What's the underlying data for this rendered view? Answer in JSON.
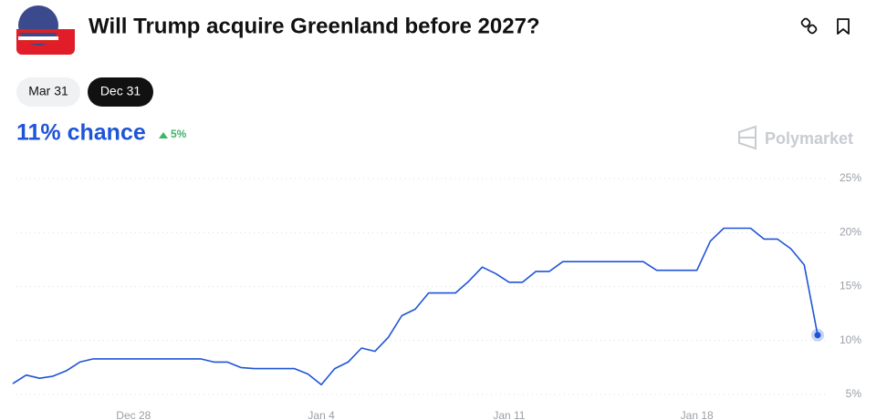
{
  "header": {
    "title": "Will Trump acquire Greenland before 2027?"
  },
  "date_tabs": [
    "Mar 31",
    "Dec 31"
  ],
  "active_tab": 1,
  "headline": {
    "chance": "11% chance",
    "change": "5%"
  },
  "watermark": "Polymarket",
  "chart_data": {
    "type": "line",
    "categories": [
      null,
      null,
      null,
      null,
      null,
      null,
      null,
      null,
      null,
      "Dec 28",
      null,
      null,
      null,
      null,
      null,
      null,
      null,
      null,
      null,
      null,
      null,
      null,
      null,
      "Jan 4",
      null,
      null,
      null,
      null,
      null,
      null,
      null,
      null,
      null,
      null,
      null,
      null,
      null,
      "Jan 11",
      null,
      null,
      null,
      null,
      null,
      null,
      null,
      null,
      null,
      null,
      null,
      null,
      null,
      "Jan 18",
      null,
      null,
      null,
      null,
      null,
      null,
      null,
      null,
      null
    ],
    "series": [
      {
        "color": "#1e54d6",
        "values": [
          6.0,
          6.8,
          6.5,
          6.7,
          7.2,
          8.0,
          8.3,
          8.3,
          8.3,
          8.3,
          8.3,
          8.3,
          8.3,
          8.3,
          8.3,
          8.0,
          8.0,
          7.5,
          7.4,
          7.4,
          7.4,
          7.4,
          6.9,
          5.9,
          7.4,
          8.0,
          9.3,
          9.0,
          10.3,
          12.3,
          12.9,
          14.4,
          14.4,
          14.4,
          15.5,
          16.8,
          16.2,
          15.4,
          15.4,
          16.4,
          16.4,
          17.3,
          17.3,
          17.3,
          17.3,
          17.3,
          17.3,
          17.3,
          16.5,
          16.5,
          16.5,
          16.5,
          19.2,
          20.4,
          20.4,
          20.4,
          19.4,
          19.4,
          18.5,
          17.0,
          10.5
        ]
      }
    ],
    "ylim": [
      5,
      25
    ],
    "yticks": [
      {
        "value": 5,
        "label": "5%"
      },
      {
        "value": 10,
        "label": "10%"
      },
      {
        "value": 15,
        "label": "15%"
      },
      {
        "value": 20,
        "label": "20%"
      },
      {
        "value": 25,
        "label": "25%"
      }
    ],
    "grid": true
  }
}
